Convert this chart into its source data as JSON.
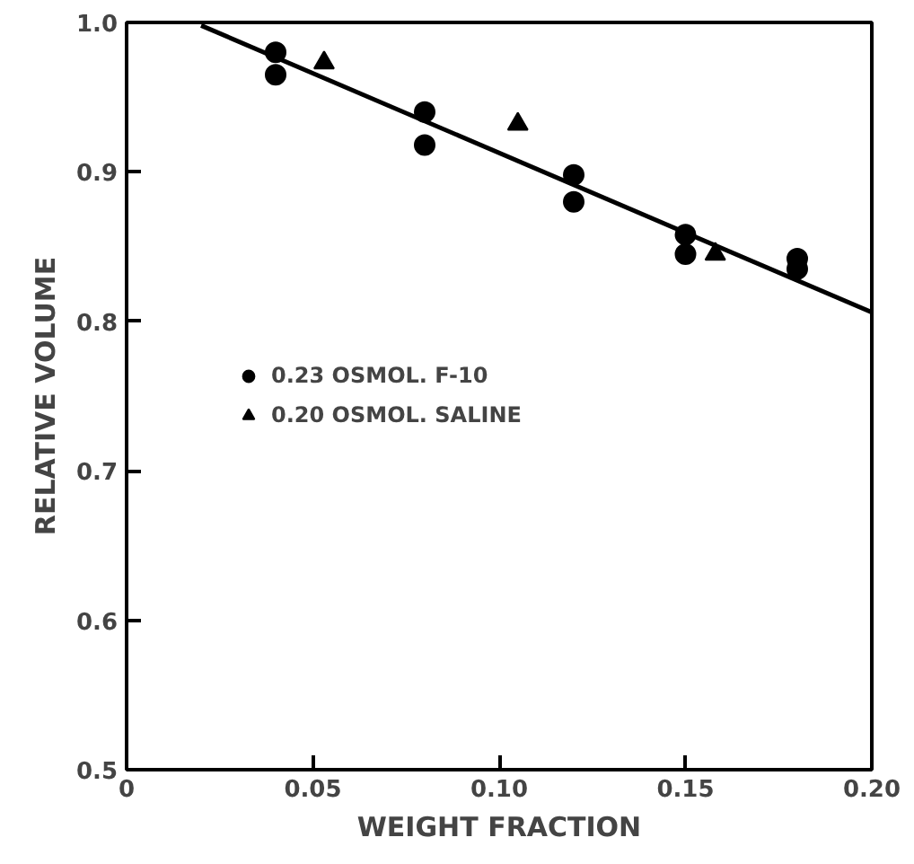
{
  "chart_data": {
    "type": "scatter",
    "xlabel": "WEIGHT FRACTION",
    "ylabel": "RELATIVE VOLUME",
    "xlim": [
      0,
      0.2
    ],
    "ylim": [
      0.5,
      1.0
    ],
    "xticks": [
      0,
      {
        "value": 0.05,
        "label": "0.05"
      },
      {
        "value": 0.1,
        "label": "0.10"
      },
      {
        "value": 0.15,
        "label": "0.15"
      },
      {
        "value": 0.2,
        "label": "0.20"
      }
    ],
    "yticks": [
      0.5,
      0.6,
      0.7,
      0.8,
      0.9,
      {
        "value": 1.0,
        "label": "1.0"
      }
    ],
    "grid": false,
    "legend": "left",
    "series": [
      {
        "name": "0.23 OSMOL. F-10",
        "color": "#000000",
        "marker": "circle",
        "x": [
          0.04,
          0.04,
          0.08,
          0.08,
          0.12,
          0.12,
          0.15,
          0.15,
          0.18,
          0.18
        ],
        "values": [
          0.98,
          0.965,
          0.94,
          0.918,
          0.898,
          0.88,
          0.858,
          0.845,
          0.842,
          0.835
        ]
      },
      {
        "name": "0.20 OSMOL. SALINE",
        "color": "#000000",
        "marker": "triangle",
        "x": [
          0.053,
          0.105,
          0.158
        ],
        "values": [
          0.973,
          0.932,
          0.845
        ]
      },
      {
        "type": "line",
        "color": "#000000",
        "line_style": "solid",
        "marker": "none",
        "x": [
          0.02,
          0.2
        ],
        "values": [
          0.998,
          0.806
        ]
      }
    ]
  }
}
